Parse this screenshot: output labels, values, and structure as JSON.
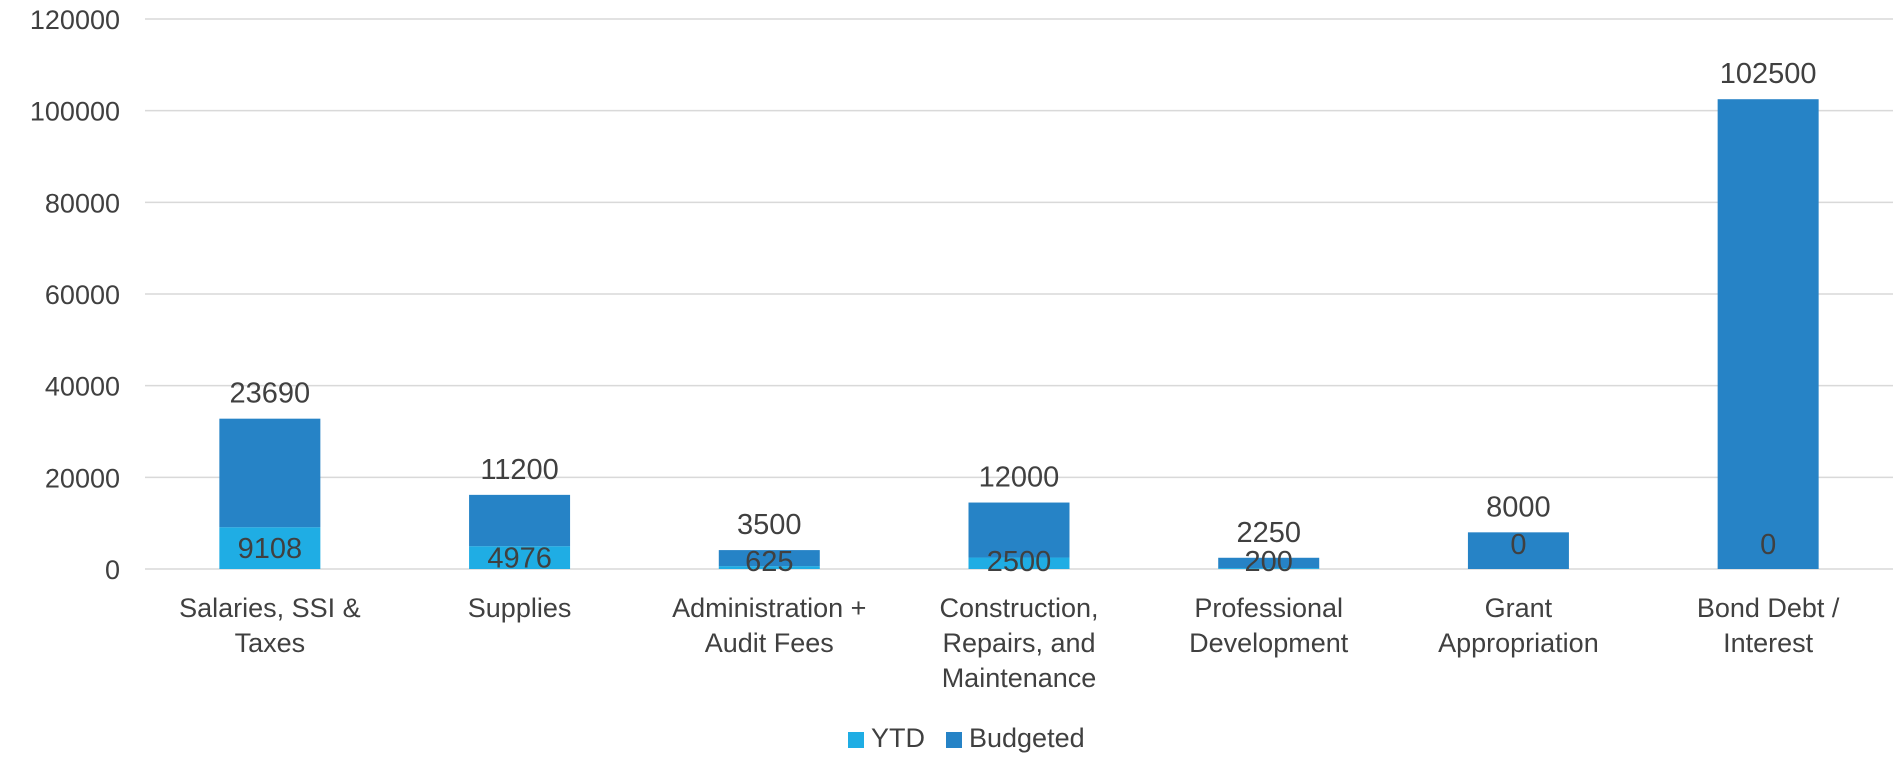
{
  "chart_data": {
    "type": "bar",
    "stacked": true,
    "categories": [
      [
        "Salaries, SSI &",
        "Taxes"
      ],
      [
        "Supplies"
      ],
      [
        "Administration +",
        "Audit Fees"
      ],
      [
        "Construction,",
        "Repairs, and",
        "Maintenance"
      ],
      [
        "Professional",
        "Development"
      ],
      [
        "Grant",
        "Appropriation"
      ],
      [
        "Bond Debt /",
        "Interest"
      ]
    ],
    "series": [
      {
        "name": "YTD",
        "color": "#1fade4",
        "values": [
          9108,
          4976,
          625,
          2500,
          200,
          0,
          0
        ]
      },
      {
        "name": "Budgeted",
        "color": "#2683c6",
        "values": [
          23690,
          11200,
          3500,
          12000,
          2250,
          8000,
          102500
        ]
      }
    ],
    "ylim": [
      0,
      120000
    ],
    "yticks": [
      0,
      20000,
      40000,
      60000,
      80000,
      100000,
      120000
    ],
    "grid": true,
    "legend_position": "bottom"
  }
}
